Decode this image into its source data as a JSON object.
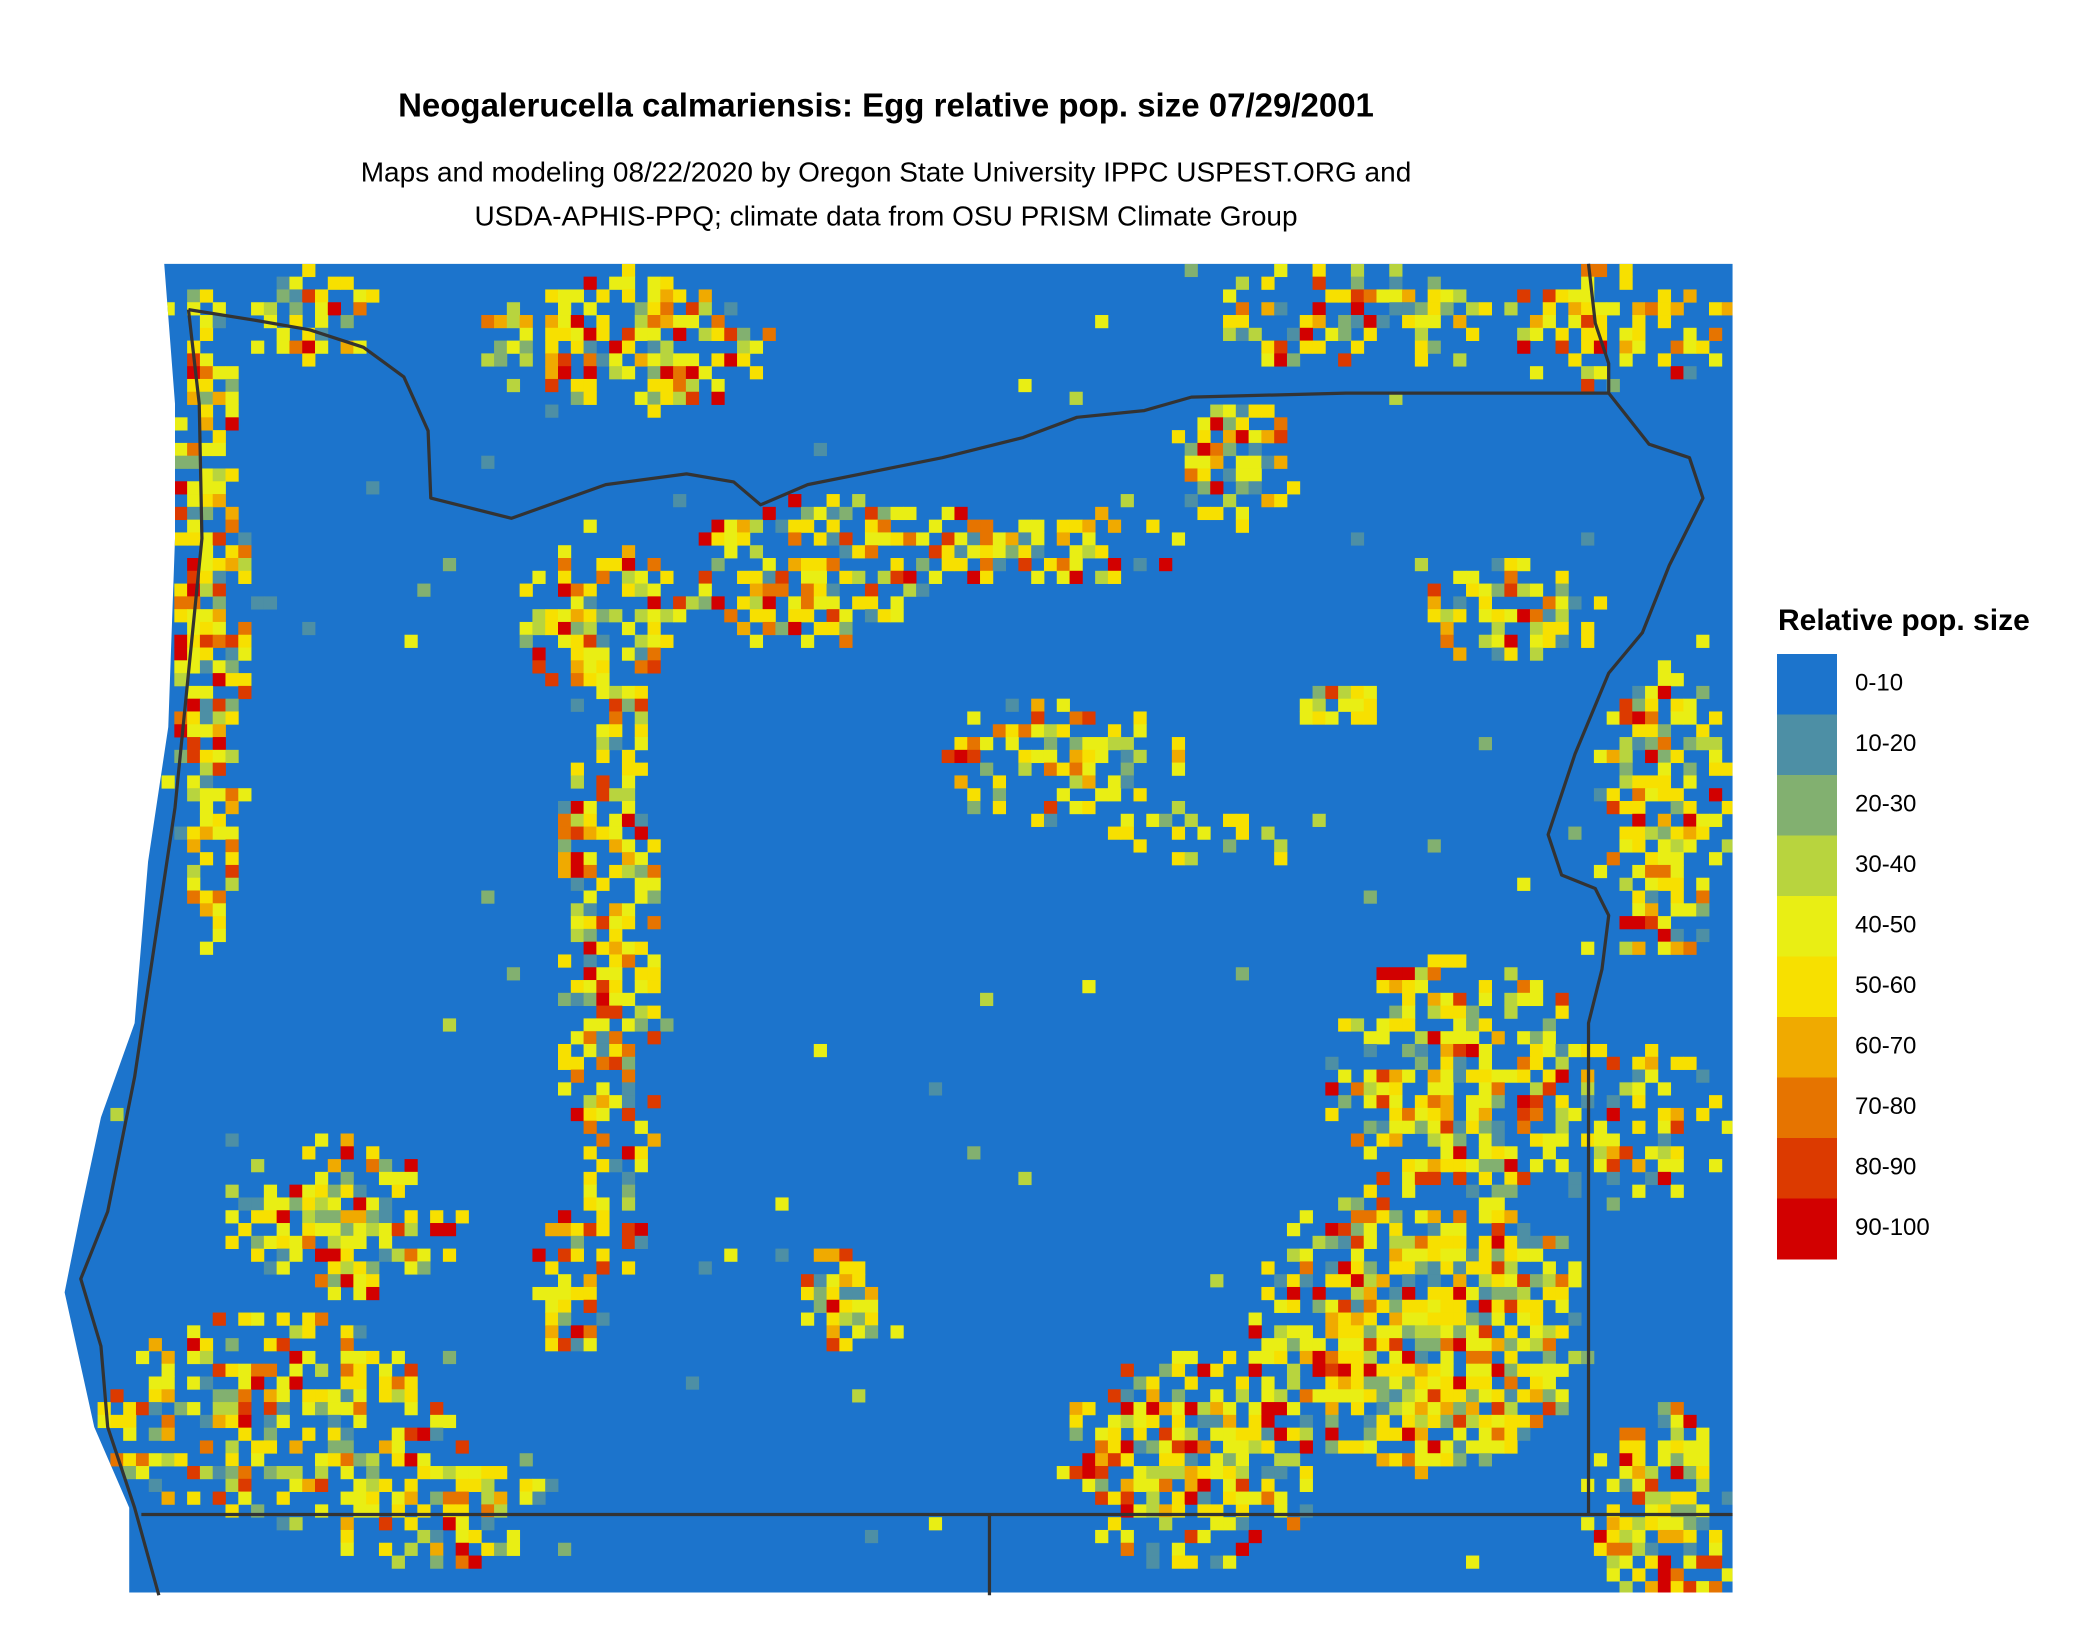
{
  "header": {
    "title": "Neogalerucella calmariensis: Egg relative pop. size 07/29/2001",
    "subtitle_lines": [
      "Maps and modeling 08/22/2020 by Oregon State University IPPC USPEST.ORG and",
      "USDA-APHIS-PPQ; climate data from OSU PRISM Climate Group"
    ]
  },
  "legend": {
    "title": "Relative pop. size",
    "items": [
      {
        "label": "0-10",
        "color": "#1c74cc"
      },
      {
        "label": "10-20",
        "color": "#4d8fa5"
      },
      {
        "label": "20-30",
        "color": "#82b070"
      },
      {
        "label": "30-40",
        "color": "#b8d43e"
      },
      {
        "label": "40-50",
        "color": "#e9ee14"
      },
      {
        "label": "50-60",
        "color": "#f7e000"
      },
      {
        "label": "60-70",
        "color": "#f0aa00"
      },
      {
        "label": "70-80",
        "color": "#e67400"
      },
      {
        "label": "80-90",
        "color": "#dc3a00"
      },
      {
        "label": "90-100",
        "color": "#d20000"
      }
    ]
  }
}
